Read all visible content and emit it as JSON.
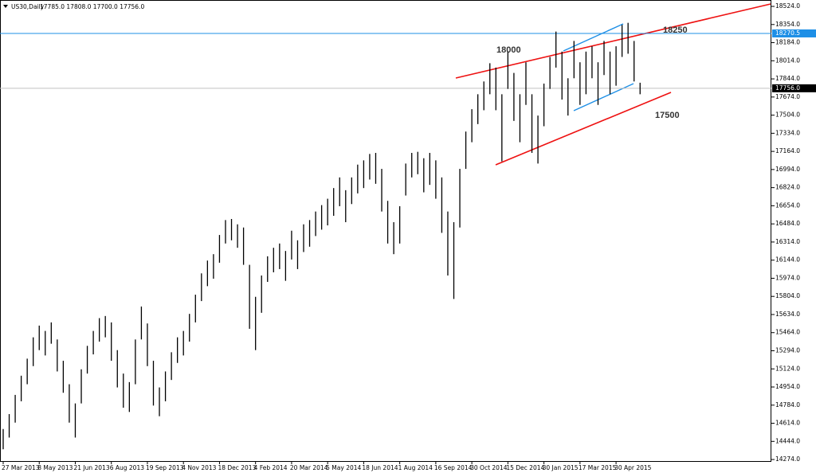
{
  "chart_data": {
    "type": "hlbar",
    "title": "US30,Daily",
    "ohlc_text": "17785.0 17808.0 17700.0 17756.0",
    "annotations": [
      "18000",
      "18250",
      "17500"
    ],
    "categories": [
      "27 Mar 2013",
      null,
      null,
      null,
      null,
      null,
      "8 May 2013",
      null,
      null,
      null,
      null,
      null,
      "21 Jun 2013",
      null,
      null,
      null,
      null,
      null,
      "6 Aug 2013",
      null,
      null,
      null,
      null,
      null,
      "19 Sep 2013",
      null,
      null,
      null,
      null,
      null,
      "4 Nov 2013",
      null,
      null,
      null,
      null,
      null,
      "18 Dec 2013",
      null,
      null,
      null,
      null,
      null,
      "4 Feb 2014",
      null,
      null,
      null,
      null,
      null,
      "20 Mar 2014",
      null,
      null,
      null,
      null,
      null,
      "5 May 2014",
      null,
      null,
      null,
      null,
      null,
      "18 Jun 2014",
      null,
      null,
      null,
      null,
      null,
      "1 Aug 2014",
      null,
      null,
      null,
      null,
      null,
      "16 Sep 2014",
      null,
      null,
      null,
      null,
      null,
      "30 Oct 2014",
      null,
      null,
      null,
      null,
      null,
      "15 Dec 2014",
      null,
      null,
      null,
      null,
      null,
      "30 Jan 2015",
      null,
      null,
      null,
      null,
      null,
      "17 Mar 2015",
      null,
      null,
      null,
      null,
      null,
      "30 Apr 2015",
      null,
      null,
      null,
      null
    ],
    "low": [
      14370,
      14480,
      14620,
      14820,
      14980,
      15150,
      15300,
      15250,
      15360,
      15100,
      14900,
      14620,
      14480,
      14800,
      15080,
      15260,
      15380,
      15420,
      15200,
      14950,
      14760,
      14720,
      14980,
      15400,
      15150,
      14780,
      14680,
      14820,
      15020,
      15180,
      15250,
      15380,
      15560,
      15760,
      15900,
      15970,
      16120,
      16300,
      16330,
      16260,
      16100,
      15500,
      15300,
      15650,
      15940,
      16030,
      16060,
      15950,
      16150,
      16060,
      16220,
      16270,
      16370,
      16430,
      16470,
      16560,
      16650,
      16500,
      16670,
      16770,
      16820,
      16900,
      16860,
      16600,
      16300,
      16200,
      16300,
      16750,
      16920,
      16950,
      16780,
      16850,
      16720,
      16400,
      16000,
      15780,
      16450,
      17000,
      17250,
      17420,
      17550,
      17700,
      17550,
      17070,
      17750,
      17450,
      17250,
      17600,
      17150,
      17050,
      17400,
      17750,
      17950,
      17650,
      17500,
      17850,
      17600,
      17700,
      17850,
      17600,
      17880,
      17700,
      17780,
      18050,
      18080,
      17820,
      17700
    ],
    "high": [
      14560,
      14700,
      14880,
      15060,
      15220,
      15420,
      15530,
      15480,
      15560,
      15400,
      15200,
      14980,
      14800,
      15120,
      15340,
      15480,
      15600,
      15620,
      15560,
      15300,
      15080,
      15000,
      15400,
      15709,
      15550,
      15200,
      14950,
      15100,
      15280,
      15420,
      15480,
      15640,
      15820,
      16020,
      16140,
      16200,
      16380,
      16520,
      16530,
      16480,
      16450,
      16100,
      15800,
      16000,
      16180,
      16260,
      16300,
      16230,
      16420,
      16330,
      16480,
      16520,
      16600,
      16660,
      16720,
      16820,
      16920,
      16800,
      16920,
      17040,
      17080,
      17140,
      17150,
      17000,
      16700,
      16500,
      16650,
      17050,
      17150,
      17160,
      17100,
      17150,
      17080,
      16920,
      16600,
      16500,
      17000,
      17350,
      17560,
      17700,
      17820,
      17991,
      17950,
      17700,
      18100,
      17900,
      17700,
      18000,
      17700,
      17500,
      17800,
      18050,
      18288,
      18100,
      17850,
      18200,
      18000,
      18100,
      18150,
      18000,
      18200,
      18100,
      18150,
      18351,
      18370,
      18200,
      17808
    ],
    "color": "#000000",
    "ylim": [
      14252,
      18584
    ],
    "yticks": [
      {
        "value": 14274,
        "label": "14274.0"
      },
      {
        "value": 14444,
        "label": "14444.0"
      },
      {
        "value": 14614,
        "label": "14614.0"
      },
      {
        "value": 14784,
        "label": "14784.0"
      },
      {
        "value": 14954,
        "label": "14954.0"
      },
      {
        "value": 15124,
        "label": "15124.0"
      },
      {
        "value": 15294,
        "label": "15294.0"
      },
      {
        "value": 15464,
        "label": "15464.0"
      },
      {
        "value": 15634,
        "label": "15634.0"
      },
      {
        "value": 15804,
        "label": "15804.0"
      },
      {
        "value": 15974,
        "label": "15974.0"
      },
      {
        "value": 16144,
        "label": "16144.0"
      },
      {
        "value": 16314,
        "label": "16314.0"
      },
      {
        "value": 16484,
        "label": "16484.0"
      },
      {
        "value": 16654,
        "label": "16654.0"
      },
      {
        "value": 16824,
        "label": "16824.0"
      },
      {
        "value": 16994,
        "label": "16994.0"
      },
      {
        "value": 17164,
        "label": "17164.0"
      },
      {
        "value": 17334,
        "label": "17334.0"
      },
      {
        "value": 17504,
        "label": "17504.0"
      },
      {
        "value": 17674,
        "label": "17674.0"
      },
      {
        "value": 17844,
        "label": "17844.0"
      },
      {
        "value": 18014,
        "label": "18014.0"
      },
      {
        "value": 18184,
        "label": "18184.0"
      },
      {
        "value": 18354,
        "label": "18354.0"
      },
      {
        "value": 18524,
        "label": "18524.0"
      }
    ],
    "levels": [
      {
        "value": 18270.5,
        "label": "18270.5",
        "color": "#1e8fe6"
      },
      {
        "value": 17756,
        "label": "17756.0",
        "color": "#c0c0c0"
      }
    ],
    "grid": false
  }
}
